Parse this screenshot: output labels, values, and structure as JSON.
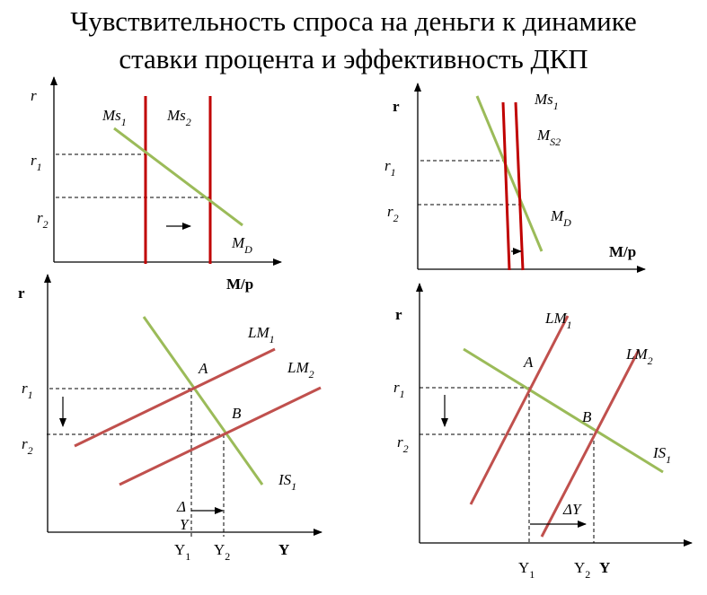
{
  "title": {
    "line1": "Чувствительность спроса на деньги к динамике",
    "line2": "ставки процента и эффективность ДКП"
  },
  "colors": {
    "money_supply": "#c00000",
    "demand_is": "#9bbb59",
    "lm": "#c0504d"
  },
  "panel_top_left": {
    "y_label": "r",
    "r1": {
      "main": "r",
      "sub": "1"
    },
    "r2": {
      "main": "r",
      "sub": "2"
    },
    "ms1": {
      "main": "Ms",
      "sub": "1"
    },
    "ms2": {
      "main": "Ms",
      "sub": "2"
    },
    "md": {
      "main": "M",
      "sub": "D"
    },
    "x_label": "M/p"
  },
  "panel_top_right": {
    "y_label": "r",
    "r1": {
      "main": "r",
      "sub": "1"
    },
    "r2": {
      "main": "r",
      "sub": "2"
    },
    "ms1": {
      "main": "Ms",
      "sub": "1"
    },
    "ms2": {
      "main": "M",
      "sub": "S2"
    },
    "md": {
      "main": "M",
      "sub": "D"
    },
    "x_label": "M/p"
  },
  "panel_bottom_left": {
    "y_label": "r",
    "r1": {
      "main": "r",
      "sub": "1"
    },
    "r2": {
      "main": "r",
      "sub": "2"
    },
    "lm1": {
      "main": "LM",
      "sub": "1"
    },
    "lm2": {
      "main": "LM",
      "sub": "2"
    },
    "is1": {
      "main": "IS",
      "sub": "1"
    },
    "point_a": "A",
    "point_b": "B",
    "delta": "Δ",
    "delta_y": "Y",
    "y1": {
      "main": "Y",
      "sub": "1"
    },
    "y2": {
      "main": "Y",
      "sub": "2"
    },
    "x_label": "Y"
  },
  "panel_bottom_right": {
    "y_label": "r",
    "r1": {
      "main": "r",
      "sub": "1"
    },
    "r2": {
      "main": "r",
      "sub": "2"
    },
    "lm1": {
      "main": "LM",
      "sub": "1"
    },
    "lm2": {
      "main": "LM",
      "sub": "2"
    },
    "is1": {
      "main": "IS",
      "sub": "1"
    },
    "point_a": "A",
    "point_b": "B",
    "delta_y": "ΔY",
    "y1": {
      "main": "Y",
      "sub": "1"
    },
    "y2": {
      "main": "Y",
      "sub": "2"
    },
    "x_label": "Y"
  }
}
